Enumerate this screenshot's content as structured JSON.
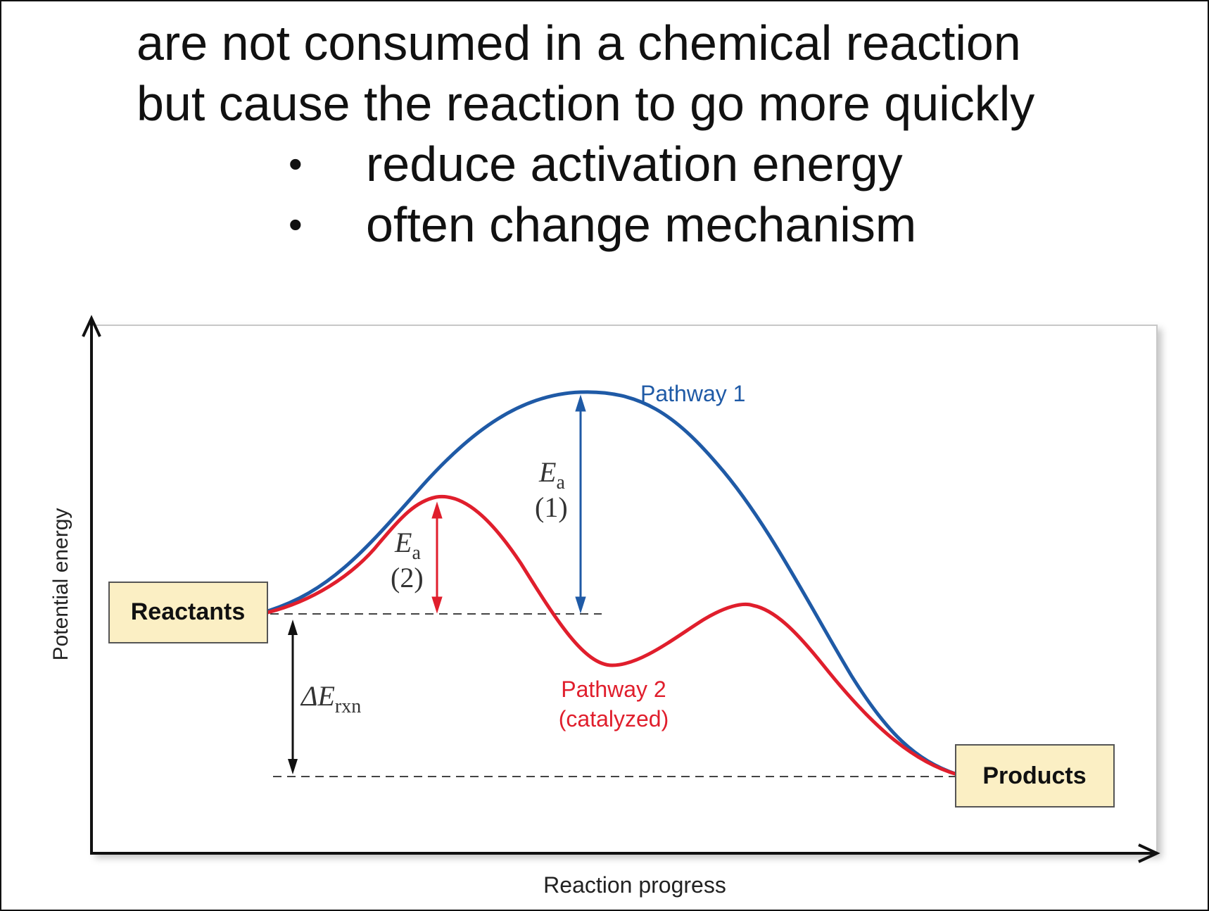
{
  "slide": {
    "line1": "are not consumed in a chemical reaction",
    "line2": "but cause the reaction to go more quickly",
    "bullets": [
      {
        "marker": "•",
        "text": "reduce activation energy"
      },
      {
        "marker": "•",
        "text": "often change mechanism"
      }
    ]
  },
  "diagram": {
    "y_axis_label": "Potential energy",
    "x_axis_label": "Reaction progress",
    "reactants_label": "Reactants",
    "products_label": "Products",
    "pathway1_label": "Pathway 1",
    "pathway2_label": "Pathway 2",
    "pathway2_sublabel": "(catalyzed)",
    "ea1": {
      "symbol": "E",
      "subscript": "a",
      "index": "(1)"
    },
    "ea2": {
      "symbol": "E",
      "subscript": "a",
      "index": "(2)"
    },
    "delta_e": {
      "symbol": "ΔE",
      "subscript": "rxn"
    },
    "colors": {
      "pathway1": "#1f5aa6",
      "pathway2": "#e01e2c",
      "box_fill": "#fbefc4",
      "axis": "#111111"
    }
  }
}
